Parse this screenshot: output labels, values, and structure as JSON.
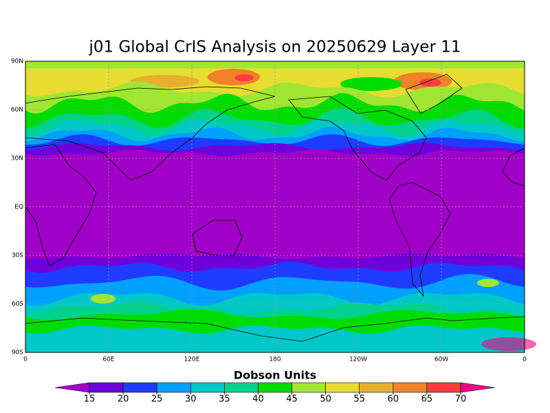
{
  "title": "j01 Global CrIS Analysis on 20250629 Layer 11",
  "map": {
    "lat_labels": [
      "90N",
      "60N",
      "30N",
      "EQ",
      "30S",
      "60S",
      "90S"
    ],
    "lon_labels": [
      "0",
      "60E",
      "120E",
      "180",
      "120W",
      "60W",
      "0"
    ]
  },
  "colorbar": {
    "label": "Dobson Units",
    "levels": [
      15,
      20,
      25,
      30,
      35,
      40,
      45,
      50,
      55,
      60,
      65,
      70
    ],
    "colors": [
      "#a000c8",
      "#6e00dc",
      "#1e3cff",
      "#00a0ff",
      "#00c8c8",
      "#00d28c",
      "#00dc00",
      "#a0e632",
      "#e6dc32",
      "#e6af2d",
      "#f08228",
      "#fa3c3c",
      "#f00082"
    ]
  }
}
